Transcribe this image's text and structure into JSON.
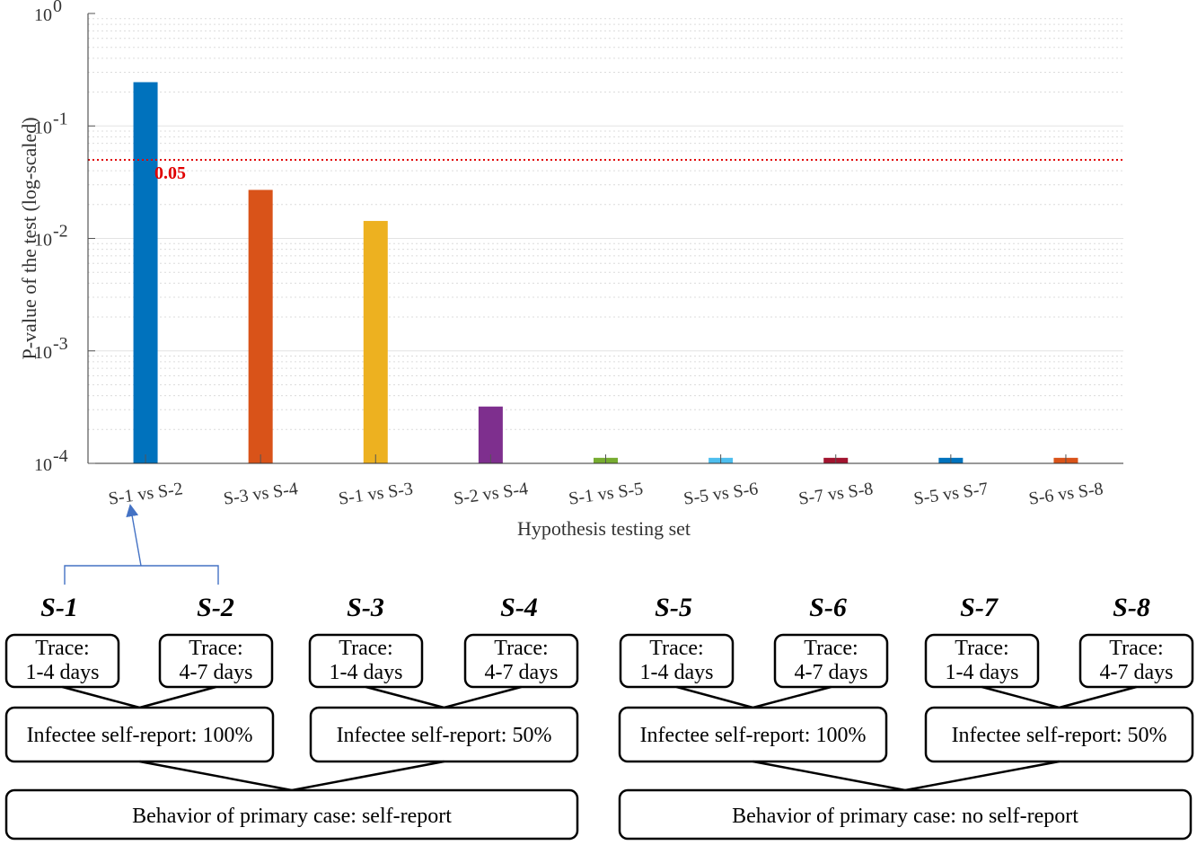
{
  "chart_data": {
    "type": "bar",
    "ylabel": "P-value of the test (log-scaled)",
    "xlabel": "Hypothesis testing set",
    "yscale": "log",
    "ylim": [
      0.0001,
      1
    ],
    "grid": true,
    "yticks": [
      {
        "value": 0.0001,
        "base": "10",
        "exp": "-4"
      },
      {
        "value": 0.001,
        "base": "10",
        "exp": "-3"
      },
      {
        "value": 0.01,
        "base": "10",
        "exp": "-2"
      },
      {
        "value": 0.1,
        "base": "10",
        "exp": "-1"
      },
      {
        "value": 1,
        "base": "10",
        "exp": "0"
      }
    ],
    "categories": [
      "S-1 vs S-2",
      "S-3 vs S-4",
      "S-1 vs S-3",
      "S-2 vs S-4",
      "S-1 vs S-5",
      "S-5 vs S-6",
      "S-7 vs S-8",
      "S-5 vs S-7",
      "S-6 vs S-8"
    ],
    "values": [
      0.245,
      0.027,
      0.0143,
      0.00032,
      0.000112,
      0.000112,
      0.000112,
      0.000112,
      0.000112
    ],
    "colors": [
      "#0072BD",
      "#D95319",
      "#EDB120",
      "#7E2F8E",
      "#77AC30",
      "#4DBEEE",
      "#A2142F",
      "#0072BD",
      "#D95319"
    ],
    "threshold": {
      "value": 0.05,
      "label": "0.05",
      "color": "#e00000"
    }
  },
  "diagram": {
    "scenarios": [
      {
        "name": "S-1",
        "trace": [
          "Trace:",
          "1-4 days"
        ]
      },
      {
        "name": "S-2",
        "trace": [
          "Trace:",
          "4-7 days"
        ]
      },
      {
        "name": "S-3",
        "trace": [
          "Trace:",
          "1-4 days"
        ]
      },
      {
        "name": "S-4",
        "trace": [
          "Trace:",
          "4-7 days"
        ]
      },
      {
        "name": "S-5",
        "trace": [
          "Trace:",
          "1-4 days"
        ]
      },
      {
        "name": "S-6",
        "trace": [
          "Trace:",
          "4-7 days"
        ]
      },
      {
        "name": "S-7",
        "trace": [
          "Trace:",
          "1-4 days"
        ]
      },
      {
        "name": "S-8",
        "trace": [
          "Trace:",
          "4-7 days"
        ]
      }
    ],
    "self_report": [
      "Infectee self-report: 100%",
      "Infectee self-report: 50%",
      "Infectee self-report: 100%",
      "Infectee self-report: 50%"
    ],
    "behavior": [
      "Behavior of primary case: self-report",
      "Behavior of primary case: no self-report"
    ]
  }
}
